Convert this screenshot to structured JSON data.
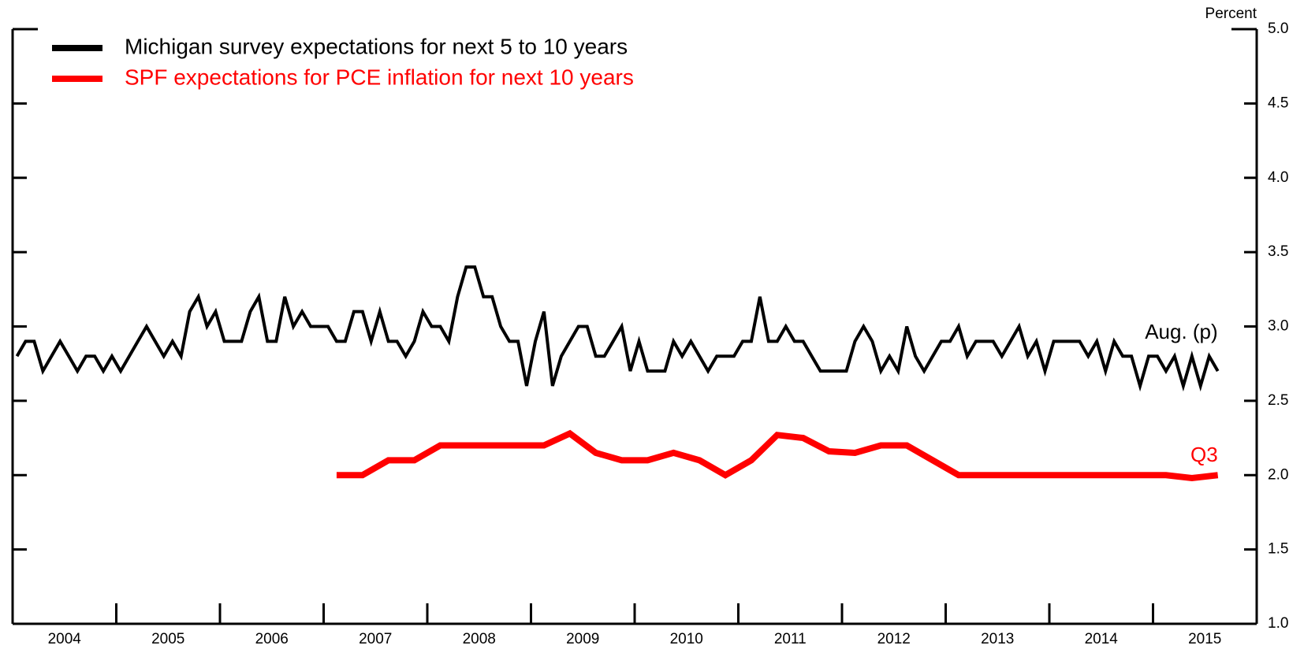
{
  "chart_data": {
    "type": "line",
    "y_label": "Percent",
    "legend": "upper left",
    "xlim": [
      2004,
      2016
    ],
    "xticks": [
      {
        "value": 2004.5,
        "label": "2004"
      },
      {
        "value": 2005.5,
        "label": "2005"
      },
      {
        "value": 2006.5,
        "label": "2006"
      },
      {
        "value": 2007.5,
        "label": "2007"
      },
      {
        "value": 2008.5,
        "label": "2008"
      },
      {
        "value": 2009.5,
        "label": "2009"
      },
      {
        "value": 2010.5,
        "label": "2010"
      },
      {
        "value": 2011.5,
        "label": "2011"
      },
      {
        "value": 2012.5,
        "label": "2012"
      },
      {
        "value": 2013.5,
        "label": "2013"
      },
      {
        "value": 2014.5,
        "label": "2014"
      },
      {
        "value": 2015.5,
        "label": "2015"
      }
    ],
    "xtick_marks": [
      2005,
      2006,
      2007,
      2008,
      2009,
      2010,
      2011,
      2012,
      2013,
      2014,
      2015
    ],
    "ylim": [
      1,
      5
    ],
    "yticks": [
      {
        "value": 1,
        "label": "1.0"
      },
      1.5,
      {
        "value": 2,
        "label": "2.0"
      },
      2.5,
      {
        "value": 3,
        "label": "3.0"
      },
      3.5,
      {
        "value": 4,
        "label": "4.0"
      },
      4.5,
      {
        "value": 5,
        "label": "5.0"
      }
    ],
    "annotations": [
      "Aug. (p)",
      "Q3"
    ],
    "series": [
      {
        "name": "Michigan survey expectations for next 5 to 10 years",
        "color": "#000000",
        "x": [
          2004.042,
          2004.125,
          2004.208,
          2004.292,
          2004.375,
          2004.458,
          2004.542,
          2004.625,
          2004.708,
          2004.792,
          2004.875,
          2004.958,
          2005.042,
          2005.125,
          2005.208,
          2005.292,
          2005.375,
          2005.458,
          2005.542,
          2005.625,
          2005.708,
          2005.792,
          2005.875,
          2005.958,
          2006.042,
          2006.125,
          2006.208,
          2006.292,
          2006.375,
          2006.458,
          2006.542,
          2006.625,
          2006.708,
          2006.792,
          2006.875,
          2006.958,
          2007.042,
          2007.125,
          2007.208,
          2007.292,
          2007.375,
          2007.458,
          2007.542,
          2007.625,
          2007.708,
          2007.792,
          2007.875,
          2007.958,
          2008.042,
          2008.125,
          2008.208,
          2008.292,
          2008.375,
          2008.458,
          2008.542,
          2008.625,
          2008.708,
          2008.792,
          2008.875,
          2008.958,
          2009.042,
          2009.125,
          2009.208,
          2009.292,
          2009.375,
          2009.458,
          2009.542,
          2009.625,
          2009.708,
          2009.792,
          2009.875,
          2009.958,
          2010.042,
          2010.125,
          2010.208,
          2010.292,
          2010.375,
          2010.458,
          2010.542,
          2010.625,
          2010.708,
          2010.792,
          2010.875,
          2010.958,
          2011.042,
          2011.125,
          2011.208,
          2011.292,
          2011.375,
          2011.458,
          2011.542,
          2011.625,
          2011.708,
          2011.792,
          2011.875,
          2011.958,
          2012.042,
          2012.125,
          2012.208,
          2012.292,
          2012.375,
          2012.458,
          2012.542,
          2012.625,
          2012.708,
          2012.792,
          2012.875,
          2012.958,
          2013.042,
          2013.125,
          2013.208,
          2013.292,
          2013.375,
          2013.458,
          2013.542,
          2013.625,
          2013.708,
          2013.792,
          2013.875,
          2013.958,
          2014.042,
          2014.125,
          2014.208,
          2014.292,
          2014.375,
          2014.458,
          2014.542,
          2014.625,
          2014.708,
          2014.792,
          2014.875,
          2014.958,
          2015.042,
          2015.125,
          2015.208,
          2015.292,
          2015.375,
          2015.458,
          2015.542,
          2015.625
        ],
        "values": [
          2.8,
          2.9,
          2.9,
          2.7,
          2.8,
          2.9,
          2.8,
          2.7,
          2.8,
          2.8,
          2.7,
          2.8,
          2.7,
          2.8,
          2.9,
          3.0,
          2.9,
          2.8,
          2.9,
          2.8,
          3.1,
          3.2,
          3.0,
          3.1,
          2.9,
          2.9,
          2.9,
          3.1,
          3.2,
          2.9,
          2.9,
          3.2,
          3.0,
          3.1,
          3.0,
          3.0,
          3.0,
          2.9,
          2.9,
          3.1,
          3.1,
          2.9,
          3.1,
          2.9,
          2.9,
          2.8,
          2.9,
          3.1,
          3.0,
          3.0,
          2.9,
          3.2,
          3.4,
          3.4,
          3.2,
          3.2,
          3.0,
          2.9,
          2.9,
          2.6,
          2.9,
          3.1,
          2.6,
          2.8,
          2.9,
          3.0,
          3.0,
          2.8,
          2.8,
          2.9,
          3.0,
          2.7,
          2.9,
          2.7,
          2.7,
          2.7,
          2.9,
          2.8,
          2.9,
          2.8,
          2.7,
          2.8,
          2.8,
          2.8,
          2.9,
          2.9,
          3.2,
          2.9,
          2.9,
          3.0,
          2.9,
          2.9,
          2.8,
          2.7,
          2.7,
          2.7,
          2.7,
          2.9,
          3.0,
          2.9,
          2.7,
          2.8,
          2.7,
          3.0,
          2.8,
          2.7,
          2.8,
          2.9,
          2.9,
          3.0,
          2.8,
          2.9,
          2.9,
          2.9,
          2.8,
          2.9,
          3.0,
          2.8,
          2.9,
          2.7,
          2.9,
          2.9,
          2.9,
          2.9,
          2.8,
          2.9,
          2.7,
          2.9,
          2.8,
          2.8,
          2.6,
          2.8,
          2.8,
          2.7,
          2.8,
          2.6,
          2.8,
          2.6,
          2.8,
          2.7
        ]
      },
      {
        "name": "SPF expectations for PCE inflation for next 10 years",
        "color": "#ff0000",
        "x": [
          2007.125,
          2007.375,
          2007.625,
          2007.875,
          2008.125,
          2008.375,
          2008.625,
          2008.875,
          2009.125,
          2009.375,
          2009.625,
          2009.875,
          2010.125,
          2010.375,
          2010.625,
          2010.875,
          2011.125,
          2011.375,
          2011.625,
          2011.875,
          2012.125,
          2012.375,
          2012.625,
          2012.875,
          2013.125,
          2013.375,
          2013.625,
          2013.875,
          2014.125,
          2014.375,
          2014.625,
          2014.875,
          2015.125,
          2015.375,
          2015.625
        ],
        "values": [
          2.0,
          2.0,
          2.1,
          2.1,
          2.2,
          2.2,
          2.2,
          2.2,
          2.2,
          2.28,
          2.15,
          2.1,
          2.1,
          2.15,
          2.1,
          2.0,
          2.1,
          2.27,
          2.25,
          2.16,
          2.15,
          2.2,
          2.2,
          2.1,
          2.0,
          2.0,
          2.0,
          2.0,
          2.0,
          2.0,
          2.0,
          2.0,
          2.0,
          1.98,
          2.0
        ]
      }
    ]
  }
}
